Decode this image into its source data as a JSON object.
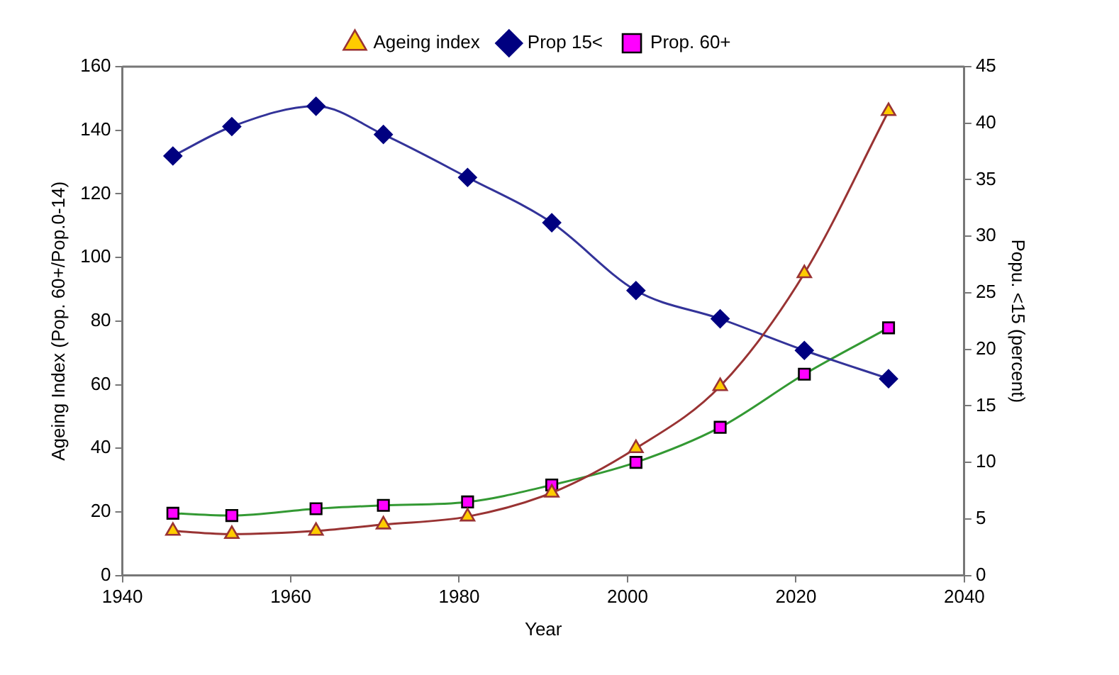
{
  "chart_data": {
    "type": "line",
    "xlabel": "Year",
    "ylabel": "Ageing Index (Pop. 60+/Pop.0-14)",
    "y2label": "Popu. <15 (percent)",
    "x": [
      1946,
      1953,
      1963,
      1971,
      1981,
      1991,
      2001,
      2011,
      2021,
      2031
    ],
    "xlim": [
      1940,
      2040
    ],
    "xticks": [
      1940,
      1960,
      1980,
      2000,
      2020,
      2040
    ],
    "ylim": [
      0,
      160
    ],
    "yticks": [
      0,
      20,
      40,
      60,
      80,
      100,
      120,
      140,
      160
    ],
    "y2lim": [
      0,
      45
    ],
    "y2ticks": [
      0,
      5,
      10,
      15,
      20,
      25,
      30,
      35,
      40,
      45
    ],
    "grid": false,
    "legend": "top",
    "series": [
      {
        "name": "Ageing index",
        "color": "#993333",
        "marker": "triangle",
        "values": [
          14,
          13,
          14,
          16,
          18.5,
          26,
          40,
          59.5,
          95,
          146
        ]
      },
      {
        "name": "Prop 15<",
        "color": "#333399",
        "marker": "diamond",
        "axis": "y2",
        "values": [
          37.1,
          39.7,
          41.5,
          39,
          35.2,
          31.2,
          25.2,
          22.7,
          19.9,
          17.4
        ]
      },
      {
        "name": "Prop. 60+",
        "color": "#339933",
        "marker": "square",
        "axis": "y2",
        "values": [
          5.5,
          5.3,
          5.9,
          6.2,
          6.5,
          8,
          10,
          13.1,
          17.8,
          21.9
        ]
      }
    ]
  }
}
